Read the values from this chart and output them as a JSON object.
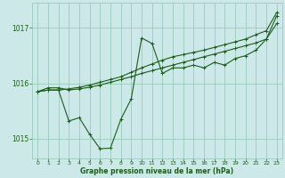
{
  "bg_color": "#cce8e8",
  "grid_color": "#99ccbb",
  "line_color": "#1a5c1a",
  "xlabel": "Graphe pression niveau de la mer (hPa)",
  "xlabel_color": "#1a5c1a",
  "ylim": [
    1014.65,
    1017.45
  ],
  "xlim": [
    -0.5,
    23.5
  ],
  "yticks": [
    1015,
    1016,
    1017
  ],
  "xticks": [
    0,
    1,
    2,
    3,
    4,
    5,
    6,
    7,
    8,
    9,
    10,
    11,
    12,
    13,
    14,
    15,
    16,
    17,
    18,
    19,
    20,
    21,
    22,
    23
  ],
  "series1_x": [
    0,
    1,
    2,
    3,
    4,
    5,
    6,
    7,
    8,
    9,
    10,
    11,
    12,
    13,
    14,
    15,
    16,
    17,
    18,
    19,
    20,
    21,
    22,
    23
  ],
  "series1_y": [
    1015.85,
    1015.92,
    1015.92,
    1015.88,
    1015.9,
    1015.93,
    1015.97,
    1016.02,
    1016.07,
    1016.12,
    1016.18,
    1016.23,
    1016.28,
    1016.33,
    1016.38,
    1016.43,
    1016.48,
    1016.53,
    1016.58,
    1016.63,
    1016.68,
    1016.73,
    1016.8,
    1017.22
  ],
  "series2_x": [
    0,
    1,
    2,
    3,
    4,
    5,
    6,
    7,
    8,
    9,
    10,
    11,
    12,
    13,
    14,
    15,
    16,
    17,
    18,
    19,
    20,
    21,
    22,
    23
  ],
  "series2_y": [
    1015.85,
    1015.88,
    1015.88,
    1015.32,
    1015.38,
    1015.08,
    1014.82,
    1014.83,
    1015.35,
    1015.72,
    1016.82,
    1016.72,
    1016.18,
    1016.28,
    1016.28,
    1016.33,
    1016.28,
    1016.38,
    1016.33,
    1016.45,
    1016.5,
    1016.6,
    1016.8,
    1017.08
  ],
  "series3_x": [
    0,
    1,
    2,
    3,
    4,
    5,
    6,
    7,
    8,
    9,
    10,
    11,
    12,
    13,
    14,
    15,
    16,
    17,
    18,
    19,
    20,
    21,
    22,
    23
  ],
  "series3_y": [
    1015.85,
    1015.88,
    1015.88,
    1015.9,
    1015.93,
    1015.97,
    1016.02,
    1016.07,
    1016.12,
    1016.2,
    1016.28,
    1016.35,
    1016.42,
    1016.48,
    1016.52,
    1016.56,
    1016.6,
    1016.65,
    1016.7,
    1016.75,
    1016.8,
    1016.88,
    1016.95,
    1017.28
  ]
}
